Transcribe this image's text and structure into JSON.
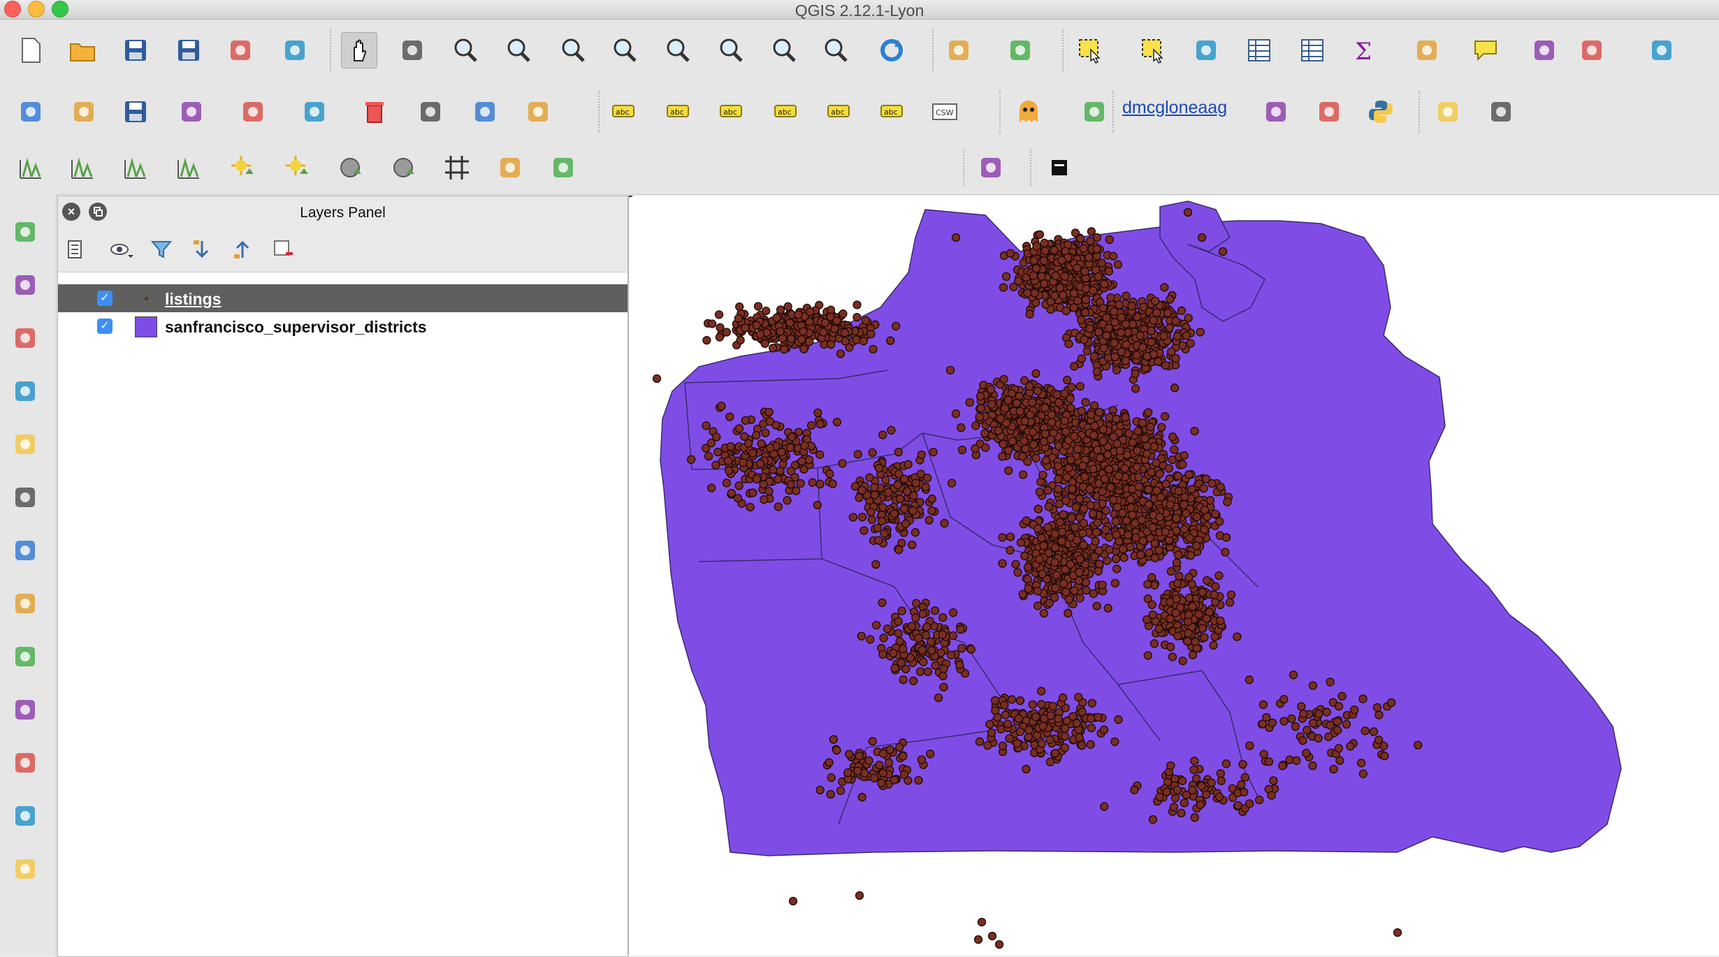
{
  "window": {
    "title": "QGIS 2.12.1-Lyon"
  },
  "plugin_user": {
    "label": "dmcgloneaag"
  },
  "toolbar_icons": {
    "row1": [
      "new-project",
      "open-project",
      "save-project",
      "save-as",
      "new-print-composer",
      "composer-manager",
      "pan",
      "pan-to-selection",
      "zoom-in",
      "zoom-out",
      "zoom-native",
      "zoom-full",
      "zoom-to-selection",
      "zoom-to-layer",
      "zoom-last",
      "zoom-next",
      "refresh",
      "identify",
      "action",
      "select",
      "deselect",
      "select-by-expression",
      "attribute-table",
      "field-calculator",
      "statistics",
      "measure",
      "map-tips",
      "new-bookmark",
      "show-bookmarks",
      "text-annotation"
    ],
    "row2": [
      "toggle-editing",
      "current-edits",
      "save-edits",
      "add-feature",
      "node-tool",
      "move-feature",
      "delete-selected",
      "cut-features",
      "copy-features",
      "paste-features",
      "label-tool",
      "pin-labels",
      "show-hide-labels",
      "move-label",
      "rotate-label",
      "change-label",
      "csw",
      "ghost-plugin",
      "geo-search",
      "web-services",
      "add-wms",
      "python-console",
      "plugin-leaf",
      "plugin-globe"
    ],
    "row3": [
      "raster-1",
      "raster-2",
      "raster-3",
      "raster-4",
      "sun-1",
      "sun-2",
      "shade-1",
      "shade-2",
      "grid",
      "buffer",
      "statistics-raster",
      "plugin-3",
      "plugin-black"
    ]
  },
  "left_toolbar_icons": [
    "add-vector-layer",
    "add-raster-layer",
    "add-postgis-layer",
    "add-spatialite-layer",
    "add-mssql-layer",
    "add-wms-layer",
    "add-wcs-layer",
    "add-wfs-layer",
    "add-delimited-text",
    "new-shapefile",
    "gps-tool",
    "add-sql-layer",
    "crosshair"
  ],
  "layers_panel": {
    "title": "Layers Panel",
    "layers": [
      {
        "name": "listings",
        "checked": true,
        "selected": true,
        "symbol_color": "#6b2a1f"
      },
      {
        "name": "sanfrancisco_supervisor_districts",
        "checked": true,
        "selected": false,
        "symbol_color": "#7f4de6"
      }
    ]
  },
  "colors": {
    "polygon_fill": "#7f4de6",
    "point_fill": "#7a2e22",
    "point_stroke": "#1e0a06"
  }
}
